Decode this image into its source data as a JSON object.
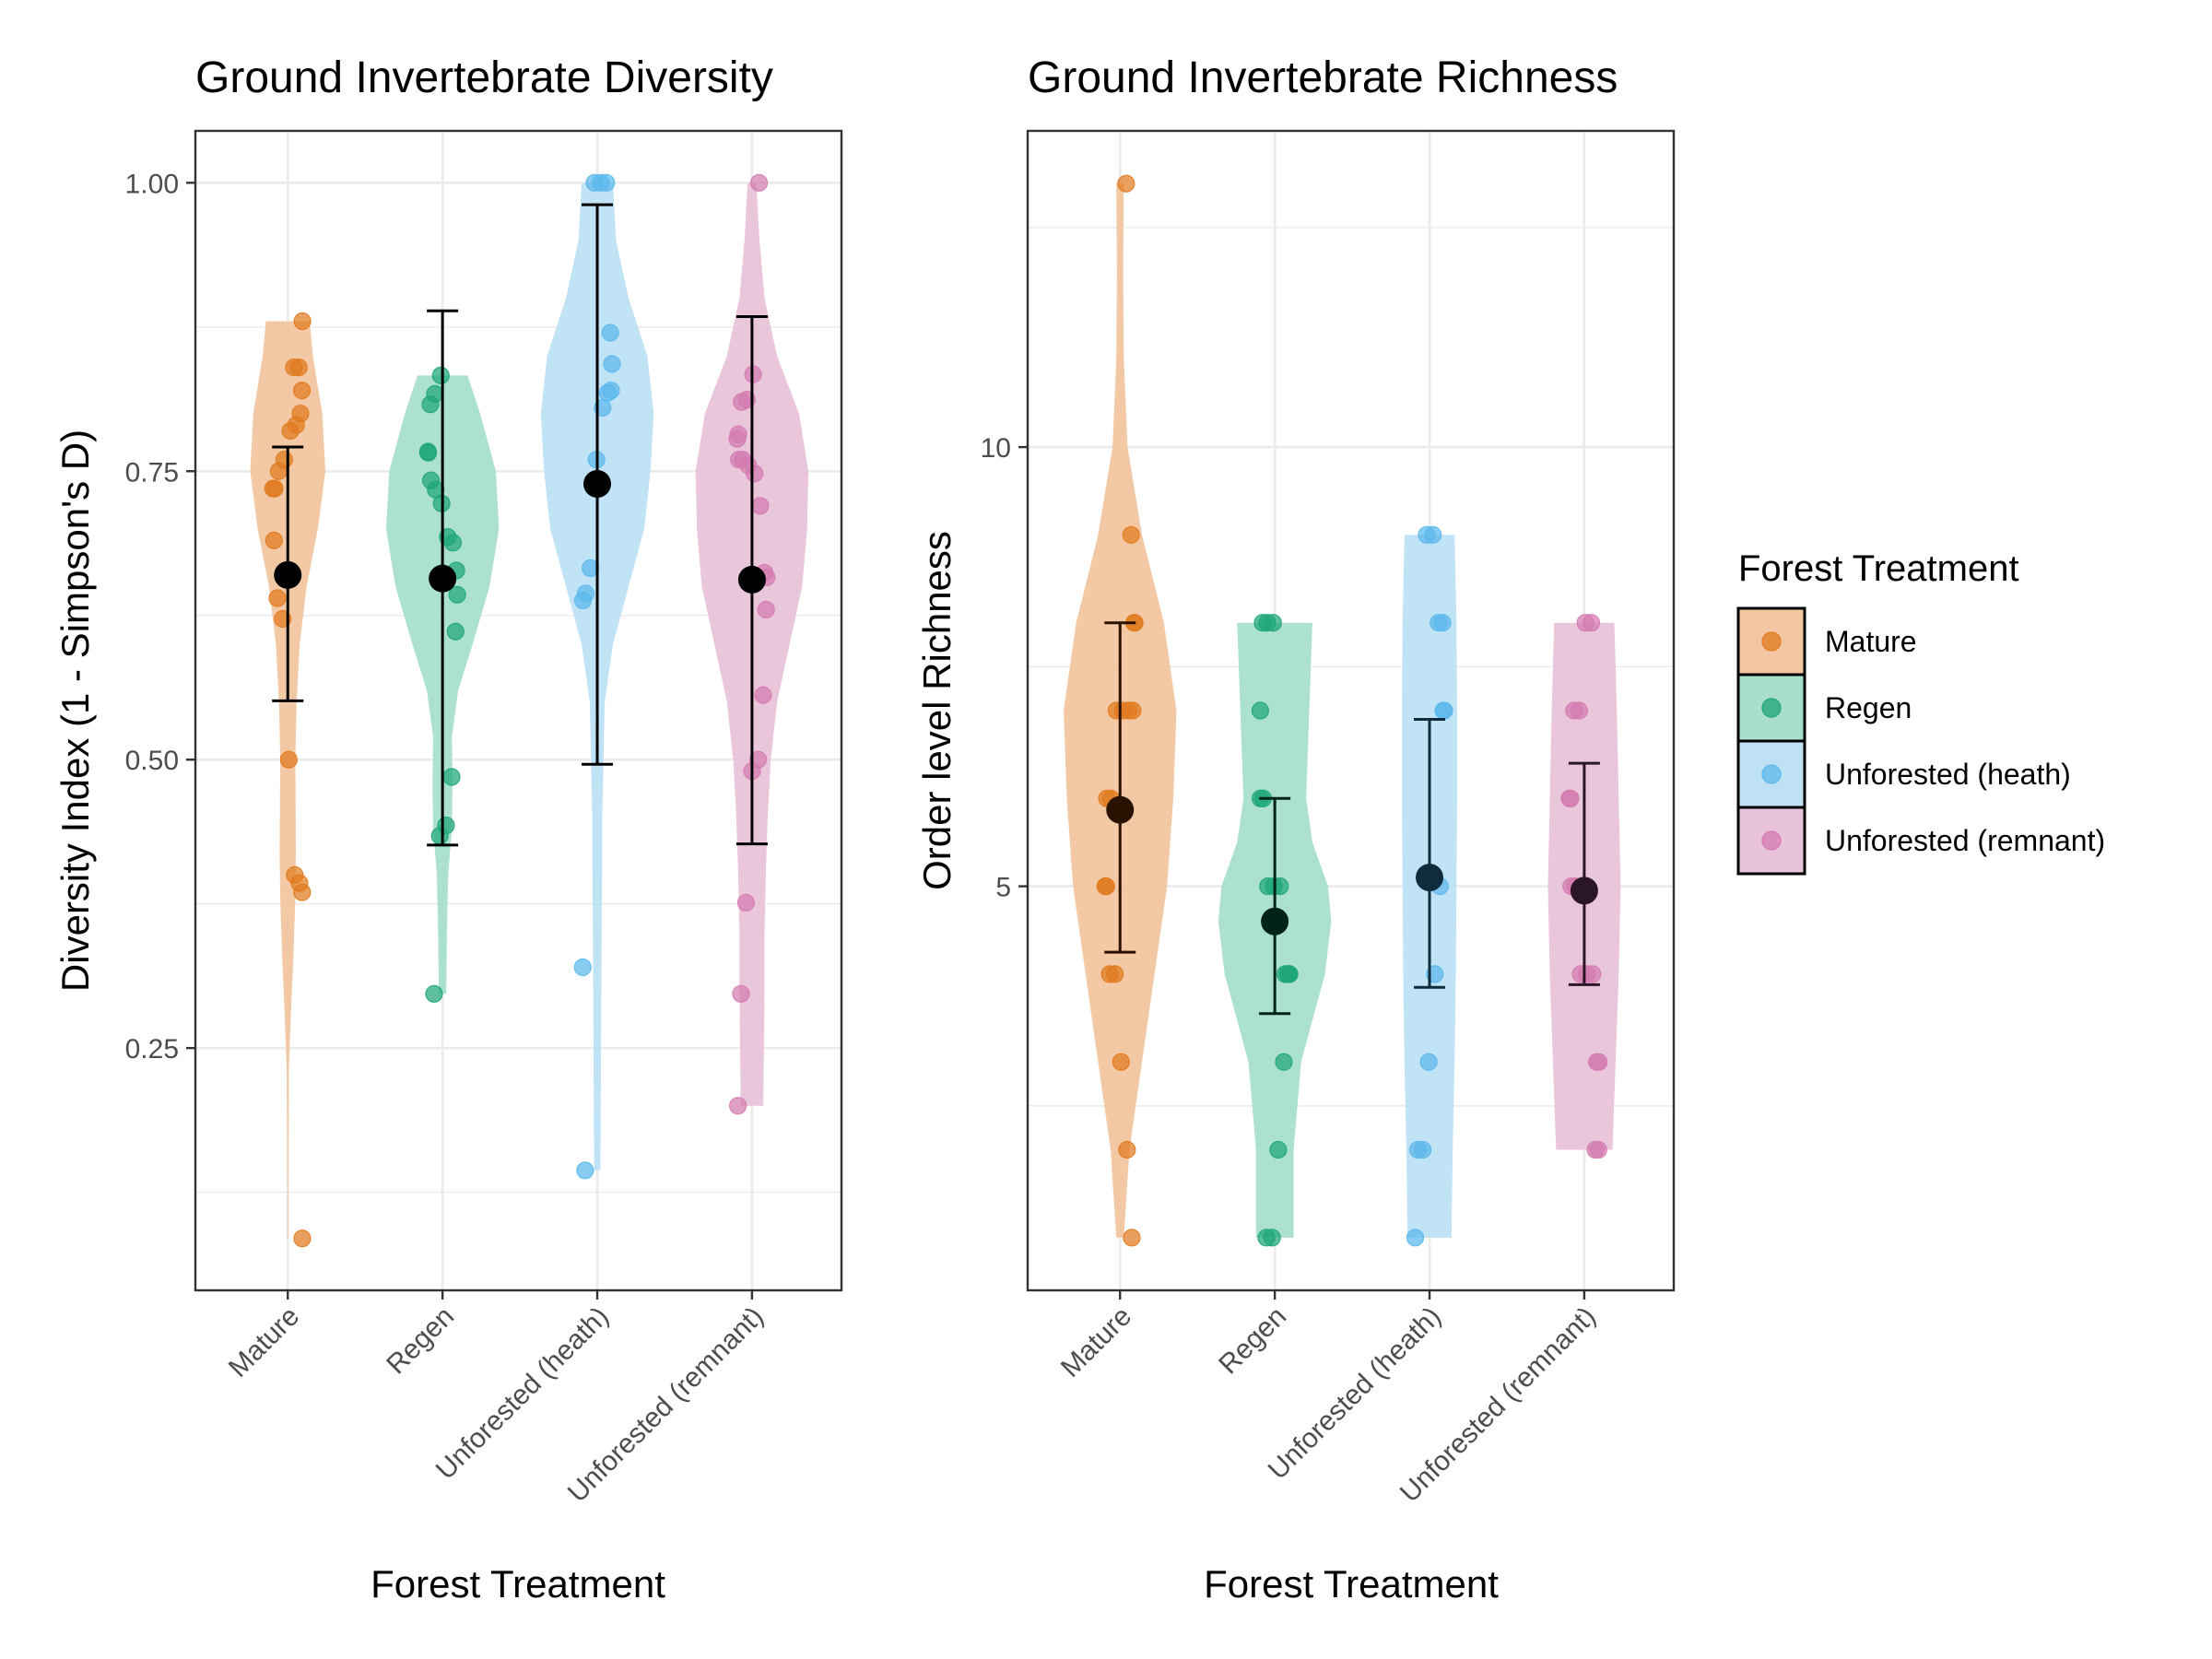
{
  "chart_data": [
    {
      "type": "violin",
      "title": "Ground Invertebrate Diversity",
      "xlabel": "Forest Treatment",
      "ylabel": "Diversity Index (1 - Simpson's D)",
      "ylim": [
        0.04,
        1.045
      ],
      "yticks": [
        0.25,
        0.5,
        0.75,
        1.0
      ],
      "ytick_labels": [
        "0.25",
        "0.50",
        "0.75",
        "1.00"
      ],
      "categories": [
        "Mature",
        "Regen",
        "Unforested (heath)",
        "Unforested (remnant)"
      ],
      "grid": true,
      "groups": [
        {
          "category": "Mature",
          "mean": 0.66,
          "error_low": 0.551,
          "error_high": 0.771,
          "violin": [
            [
              0.085,
              0.007
            ],
            [
              0.17,
              0.01
            ],
            [
              0.23,
              0.016
            ],
            [
              0.28,
              0.05
            ],
            [
              0.33,
              0.09
            ],
            [
              0.38,
              0.12
            ],
            [
              0.42,
              0.13
            ],
            [
              0.46,
              0.125
            ],
            [
              0.5,
              0.12
            ],
            [
              0.55,
              0.14
            ],
            [
              0.6,
              0.19
            ],
            [
              0.65,
              0.3
            ],
            [
              0.7,
              0.48
            ],
            [
              0.75,
              0.6
            ],
            [
              0.8,
              0.55
            ],
            [
              0.85,
              0.4
            ],
            [
              0.88,
              0.35
            ]
          ],
          "points": [
            0.84,
            0.84,
            0.82,
            0.88,
            0.8,
            0.79,
            0.785,
            0.76,
            0.75,
            0.735,
            0.735,
            0.69,
            0.64,
            0.622,
            0.5,
            0.4,
            0.393,
            0.385,
            0.085
          ]
        },
        {
          "category": "Regen",
          "mean": 0.657,
          "error_low": 0.426,
          "error_high": 0.889,
          "violin": [
            [
              0.297,
              0.06
            ],
            [
              0.35,
              0.07
            ],
            [
              0.4,
              0.09
            ],
            [
              0.44,
              0.15
            ],
            [
              0.48,
              0.16
            ],
            [
              0.52,
              0.15
            ],
            [
              0.56,
              0.25
            ],
            [
              0.6,
              0.48
            ],
            [
              0.65,
              0.75
            ],
            [
              0.7,
              0.9
            ],
            [
              0.75,
              0.85
            ],
            [
              0.8,
              0.6
            ],
            [
              0.833,
              0.4
            ]
          ],
          "points": [
            0.833,
            0.817,
            0.808,
            0.767,
            0.766,
            0.742,
            0.734,
            0.722,
            0.693,
            0.688,
            0.664,
            0.643,
            0.611,
            0.485,
            0.443,
            0.434,
            0.297
          ]
        },
        {
          "category": "Unforested (heath)",
          "mean": 0.739,
          "error_low": 0.496,
          "error_high": 0.981,
          "violin": [
            [
              0.144,
              0.05
            ],
            [
              0.25,
              0.06
            ],
            [
              0.35,
              0.07
            ],
            [
              0.45,
              0.08
            ],
            [
              0.55,
              0.12
            ],
            [
              0.6,
              0.25
            ],
            [
              0.65,
              0.5
            ],
            [
              0.7,
              0.75
            ],
            [
              0.75,
              0.85
            ],
            [
              0.8,
              0.9
            ],
            [
              0.85,
              0.8
            ],
            [
              0.9,
              0.5
            ],
            [
              0.95,
              0.3
            ],
            [
              1.0,
              0.25
            ]
          ],
          "points": [
            1.0,
            1.0,
            1.0,
            0.87,
            0.843,
            0.82,
            0.818,
            0.805,
            0.76,
            0.666,
            0.644,
            0.638,
            0.32,
            0.144
          ]
        },
        {
          "category": "Unforested (remnant)",
          "mean": 0.656,
          "error_low": 0.427,
          "error_high": 0.884,
          "violin": [
            [
              0.2,
              0.18
            ],
            [
              0.25,
              0.19
            ],
            [
              0.3,
              0.2
            ],
            [
              0.35,
              0.2
            ],
            [
              0.4,
              0.22
            ],
            [
              0.45,
              0.25
            ],
            [
              0.5,
              0.3
            ],
            [
              0.55,
              0.4
            ],
            [
              0.6,
              0.6
            ],
            [
              0.65,
              0.8
            ],
            [
              0.7,
              0.88
            ],
            [
              0.75,
              0.9
            ],
            [
              0.8,
              0.75
            ],
            [
              0.85,
              0.4
            ],
            [
              0.9,
              0.2
            ],
            [
              0.95,
              0.12
            ],
            [
              1.0,
              0.07
            ]
          ],
          "points": [
            1.0,
            0.834,
            0.812,
            0.81,
            0.782,
            0.778,
            0.76,
            0.76,
            0.755,
            0.748,
            0.72,
            0.662,
            0.658,
            0.63,
            0.556,
            0.5,
            0.49,
            0.376,
            0.297,
            0.2
          ]
        }
      ]
    },
    {
      "type": "violin",
      "title": "Ground Invertebrate Richness",
      "xlabel": "Forest Treatment",
      "ylabel": "Order level Richness",
      "ylim": [
        0.4,
        13.6
      ],
      "yticks": [
        5,
        10
      ],
      "ytick_labels": [
        "5",
        "10"
      ],
      "categories": [
        "Mature",
        "Regen",
        "Unforested (heath)",
        "Unforested (remnant)"
      ],
      "grid": true,
      "groups": [
        {
          "category": "Mature",
          "mean": 5.87,
          "error_low": 4.25,
          "error_high": 8.0,
          "violin": [
            [
              1,
              0.06
            ],
            [
              2,
              0.15
            ],
            [
              3,
              0.35
            ],
            [
              4,
              0.55
            ],
            [
              5,
              0.75
            ],
            [
              6,
              0.85
            ],
            [
              7,
              0.9
            ],
            [
              8,
              0.7
            ],
            [
              9,
              0.35
            ],
            [
              10,
              0.12
            ],
            [
              11,
              0.06
            ],
            [
              12,
              0.05
            ],
            [
              13,
              0.06
            ]
          ],
          "points": [
            13,
            9,
            8,
            8,
            7,
            7,
            7,
            7,
            6,
            6,
            5,
            5,
            4,
            4,
            3,
            2,
            1
          ]
        },
        {
          "category": "Regen",
          "mean": 4.6,
          "error_low": 3.55,
          "error_high": 6.0,
          "violin": [
            [
              1,
              0.3
            ],
            [
              2,
              0.3
            ],
            [
              3,
              0.42
            ],
            [
              4,
              0.8
            ],
            [
              4.6,
              0.9
            ],
            [
              5,
              0.85
            ],
            [
              5.5,
              0.6
            ],
            [
              6,
              0.5
            ],
            [
              7,
              0.55
            ],
            [
              8,
              0.6
            ]
          ],
          "points": [
            8,
            8,
            8,
            7,
            6,
            6,
            5,
            5,
            5,
            4,
            4,
            4,
            4,
            3,
            2,
            1,
            1
          ]
        },
        {
          "category": "Unforested (heath)",
          "mean": 5.1,
          "error_low": 3.85,
          "error_high": 6.9,
          "violin": [
            [
              1,
              0.35
            ],
            [
              2,
              0.37
            ],
            [
              3,
              0.4
            ],
            [
              4,
              0.42
            ],
            [
              5,
              0.43
            ],
            [
              6,
              0.44
            ],
            [
              7,
              0.44
            ],
            [
              8,
              0.43
            ],
            [
              9,
              0.4
            ]
          ],
          "points": [
            9,
            9,
            8,
            8,
            7,
            7,
            5,
            4,
            3,
            2,
            2,
            1
          ]
        },
        {
          "category": "Unforested (remnant)",
          "mean": 4.95,
          "error_low": 3.88,
          "error_high": 6.4,
          "violin": [
            [
              2,
              0.45
            ],
            [
              3,
              0.5
            ],
            [
              4,
              0.55
            ],
            [
              5,
              0.58
            ],
            [
              6,
              0.55
            ],
            [
              7,
              0.52
            ],
            [
              8,
              0.48
            ]
          ],
          "points": [
            8,
            8,
            7,
            7,
            6,
            6,
            5,
            5,
            4,
            4,
            4,
            3,
            3,
            2,
            2
          ]
        }
      ]
    }
  ],
  "legend": {
    "title": "Forest Treatment",
    "position": "right",
    "items": [
      {
        "label": "Mature",
        "color": "#E07A1E"
      },
      {
        "label": "Regen",
        "color": "#1FA67A"
      },
      {
        "label": "Unforested (heath)",
        "color": "#5BB8EC"
      },
      {
        "label": "Unforested (remnant)",
        "color": "#D47BB0"
      }
    ]
  },
  "colors": {
    "violin_fills": [
      "#F2C6A0",
      "#A8DFCB",
      "#BEE1F5",
      "#E9C3D9"
    ],
    "mean_markers": [
      "#000000",
      "#000000",
      "#000000",
      "#000000"
    ],
    "richness_mean_markers": [
      "#2A1200",
      "#002418",
      "#0F2B3C",
      "#2A1628"
    ]
  }
}
